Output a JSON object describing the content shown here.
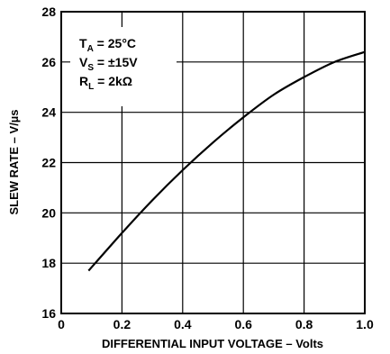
{
  "chart_data": {
    "type": "line",
    "title": "",
    "xlabel": "DIFFERENTIAL INPUT VOLTAGE – Volts",
    "ylabel": "SLEW RATE – V/µs",
    "xlim": [
      0,
      1.0
    ],
    "ylim": [
      16,
      28
    ],
    "x_ticks": [
      0,
      0.2,
      0.4,
      0.6,
      0.8,
      1.0
    ],
    "x_tick_labels": [
      "0",
      "0.2",
      "0.4",
      "0.6",
      "0.8",
      "1.0"
    ],
    "y_ticks": [
      16,
      18,
      20,
      22,
      24,
      26,
      28
    ],
    "y_tick_labels": [
      "16",
      "18",
      "20",
      "22",
      "24",
      "26",
      "28"
    ],
    "grid": true,
    "series": [
      {
        "x": [
          0.09,
          0.2,
          0.3,
          0.4,
          0.5,
          0.6,
          0.7,
          0.8,
          0.9,
          1.0
        ],
        "y": [
          17.7,
          19.2,
          20.5,
          21.7,
          22.8,
          23.8,
          24.7,
          25.4,
          26.0,
          26.4
        ]
      }
    ],
    "conditions": {
      "ta_main": "T",
      "ta_sub": "A",
      "ta_value": " = 25°C",
      "vs_main": "V",
      "vs_sub": "S",
      "vs_value": " = ±15V",
      "rl_main": "R",
      "rl_sub": "L",
      "rl_value": " = 2kΩ"
    }
  }
}
